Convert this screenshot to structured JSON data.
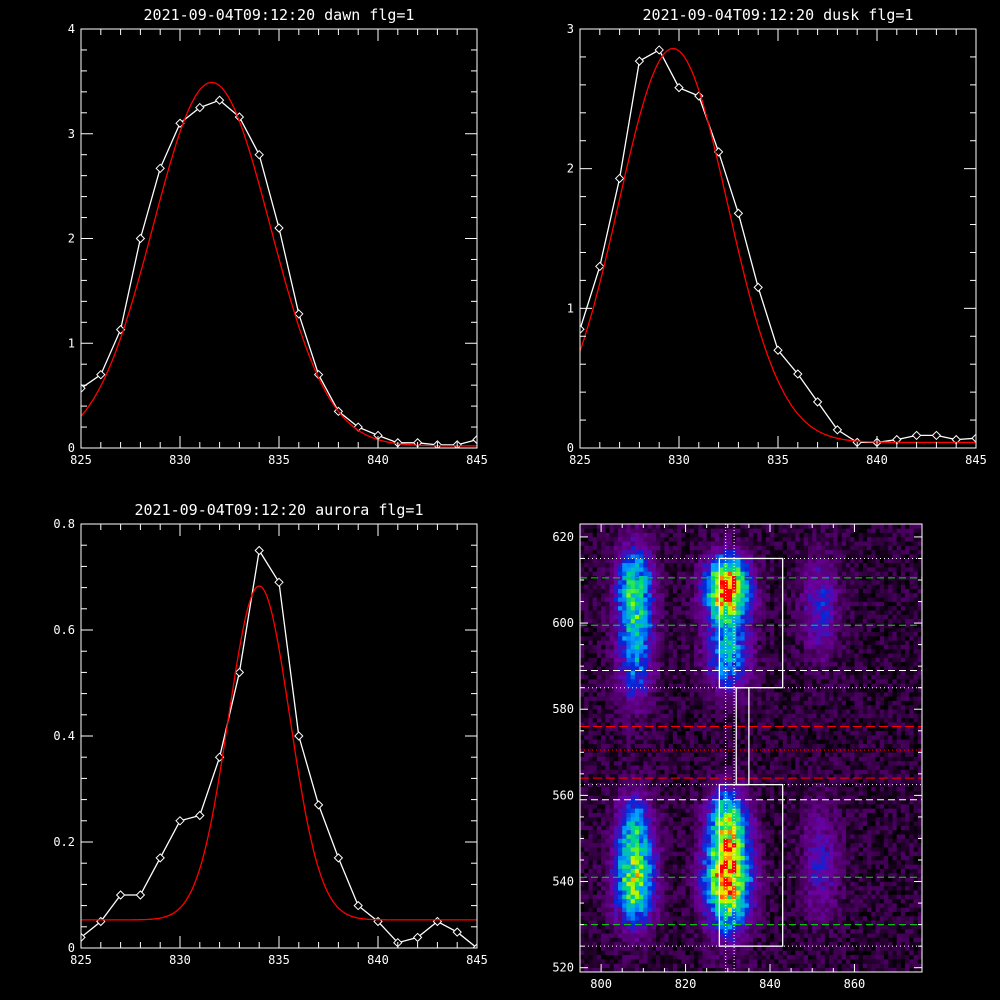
{
  "chart_data": [
    {
      "type": "line",
      "title": "2021-09-04T09:12:20 dawn flg=1",
      "xlim": [
        825,
        845
      ],
      "ylim": [
        0,
        4
      ],
      "xticks": [
        825,
        830,
        835,
        840,
        845
      ],
      "yticks": [
        0,
        1,
        2,
        3,
        4
      ],
      "series": [
        {
          "x": [
            825,
            826,
            827,
            828,
            829,
            830,
            831,
            832,
            833,
            834,
            835,
            836,
            837,
            838,
            839,
            840,
            841,
            842,
            843,
            844,
            845
          ],
          "y": [
            0.57,
            0.7,
            1.13,
            2.0,
            2.67,
            3.1,
            3.25,
            3.32,
            3.16,
            2.8,
            2.1,
            1.28,
            0.7,
            0.35,
            0.2,
            0.12,
            0.05,
            0.05,
            0.03,
            0.03,
            0.08
          ],
          "color": "#ffffff",
          "markers": "diamond"
        },
        {
          "model": "gauss",
          "amp": 3.47,
          "center": 831.6,
          "sigma": 2.95,
          "offset": 0.02,
          "color": "#ff0000"
        }
      ]
    },
    {
      "type": "line",
      "title": "2021-09-04T09:12:20 dusk flg=1",
      "xlim": [
        825,
        845
      ],
      "ylim": [
        0,
        3
      ],
      "xticks": [
        825,
        830,
        835,
        840,
        845
      ],
      "yticks": [
        0,
        1,
        2,
        3
      ],
      "series": [
        {
          "x": [
            825,
            826,
            827,
            828,
            829,
            830,
            831,
            832,
            833,
            834,
            835,
            836,
            837,
            838,
            839,
            840,
            841,
            842,
            843,
            844,
            845
          ],
          "y": [
            0.85,
            1.3,
            1.93,
            2.77,
            2.85,
            2.58,
            2.52,
            2.12,
            1.68,
            1.15,
            0.7,
            0.53,
            0.33,
            0.13,
            0.04,
            0.04,
            0.06,
            0.09,
            0.09,
            0.06,
            0.07
          ],
          "color": "#ffffff",
          "markers": "diamond"
        },
        {
          "model": "gauss",
          "amp": 2.82,
          "center": 829.7,
          "sigma": 2.75,
          "offset": 0.04,
          "color": "#ff0000"
        }
      ]
    },
    {
      "type": "line",
      "title": "2021-09-04T09:12:20 aurora flg=1",
      "xlim": [
        825,
        845
      ],
      "ylim": [
        0,
        0.8
      ],
      "xticks": [
        825,
        830,
        835,
        840,
        845
      ],
      "yticks": [
        0,
        0.2,
        0.4,
        0.6,
        0.8
      ],
      "series": [
        {
          "x": [
            825,
            826,
            827,
            828,
            829,
            830,
            831,
            832,
            833,
            834,
            835,
            836,
            837,
            838,
            839,
            840,
            841,
            842,
            843,
            844,
            845
          ],
          "y": [
            0.02,
            0.05,
            0.1,
            0.1,
            0.17,
            0.24,
            0.25,
            0.36,
            0.52,
            0.75,
            0.69,
            0.4,
            0.27,
            0.17,
            0.08,
            0.05,
            0.01,
            0.02,
            0.05,
            0.03,
            0.0
          ],
          "color": "#ffffff",
          "markers": "diamond"
        },
        {
          "model": "gauss",
          "amp": 0.63,
          "center": 834.0,
          "sigma": 1.55,
          "offset": 0.053,
          "color": "#ff0000"
        }
      ]
    },
    {
      "type": "heatmap",
      "title": "",
      "xlim": [
        795,
        876
      ],
      "ylim": [
        519,
        623
      ],
      "xticks": [
        800,
        820,
        840,
        860
      ],
      "yticks": [
        520,
        540,
        560,
        580,
        600,
        620
      ],
      "blobs": [
        {
          "x": 808,
          "y": 608,
          "sx": 3.0,
          "sy": 7,
          "amp": 0.55
        },
        {
          "x": 808,
          "y": 592,
          "sx": 3.0,
          "sy": 8,
          "amp": 0.35
        },
        {
          "x": 830,
          "y": 608,
          "sx": 3.5,
          "sy": 5,
          "amp": 1.0
        },
        {
          "x": 830,
          "y": 593,
          "sx": 3.5,
          "sy": 6,
          "amp": 0.45
        },
        {
          "x": 852,
          "y": 604,
          "sx": 3.0,
          "sy": 8,
          "amp": 0.25
        },
        {
          "x": 808,
          "y": 540,
          "sx": 3.2,
          "sy": 7,
          "amp": 0.65
        },
        {
          "x": 808,
          "y": 553,
          "sx": 3.0,
          "sy": 6,
          "amp": 0.35
        },
        {
          "x": 830,
          "y": 541,
          "sx": 3.6,
          "sy": 8,
          "amp": 0.95
        },
        {
          "x": 830,
          "y": 555,
          "sx": 3.2,
          "sy": 5,
          "amp": 0.45
        },
        {
          "x": 852,
          "y": 545,
          "sx": 3.0,
          "sy": 9,
          "amp": 0.22
        }
      ],
      "boxes": [
        {
          "x0": 828,
          "x1": 843,
          "y0": 585,
          "y1": 615,
          "color": "#ffffff"
        },
        {
          "x0": 828,
          "x1": 843,
          "y0": 525,
          "y1": 562.5,
          "color": "#ffffff"
        },
        {
          "x0": 832,
          "x1": 835,
          "y0": 562.5,
          "y1": 585,
          "color": "#ffffff"
        }
      ],
      "vlines": [
        {
          "x": 829.5,
          "color": "#ffffff",
          "dash": "1,2"
        },
        {
          "x": 831.5,
          "color": "#ffffff",
          "dash": "1,2"
        }
      ],
      "hlines": [
        {
          "y": 615,
          "color": "#ffffff",
          "dash": "1,3"
        },
        {
          "y": 610.5,
          "color": "#00dd00",
          "dash": "7,4"
        },
        {
          "y": 599.5,
          "color": "#00dd00",
          "dash": "7,4"
        },
        {
          "y": 589,
          "color": "#ffffff",
          "dash": "7,4"
        },
        {
          "y": 585,
          "color": "#ffffff",
          "dash": "1,3"
        },
        {
          "y": 576,
          "color": "#ff0000",
          "dash": "9,4"
        },
        {
          "y": 570.5,
          "color": "#ff0000",
          "dash": "1,3"
        },
        {
          "y": 564,
          "color": "#ff0000",
          "dash": "9,4"
        },
        {
          "y": 562.5,
          "color": "#ffffff",
          "dash": "1,3"
        },
        {
          "y": 559,
          "color": "#ffffff",
          "dash": "7,4"
        },
        {
          "y": 541,
          "color": "#00dd00",
          "dash": "7,4"
        },
        {
          "y": 530,
          "color": "#00dd00",
          "dash": "7,4"
        },
        {
          "y": 525,
          "color": "#ffffff",
          "dash": "1,3"
        }
      ]
    }
  ]
}
